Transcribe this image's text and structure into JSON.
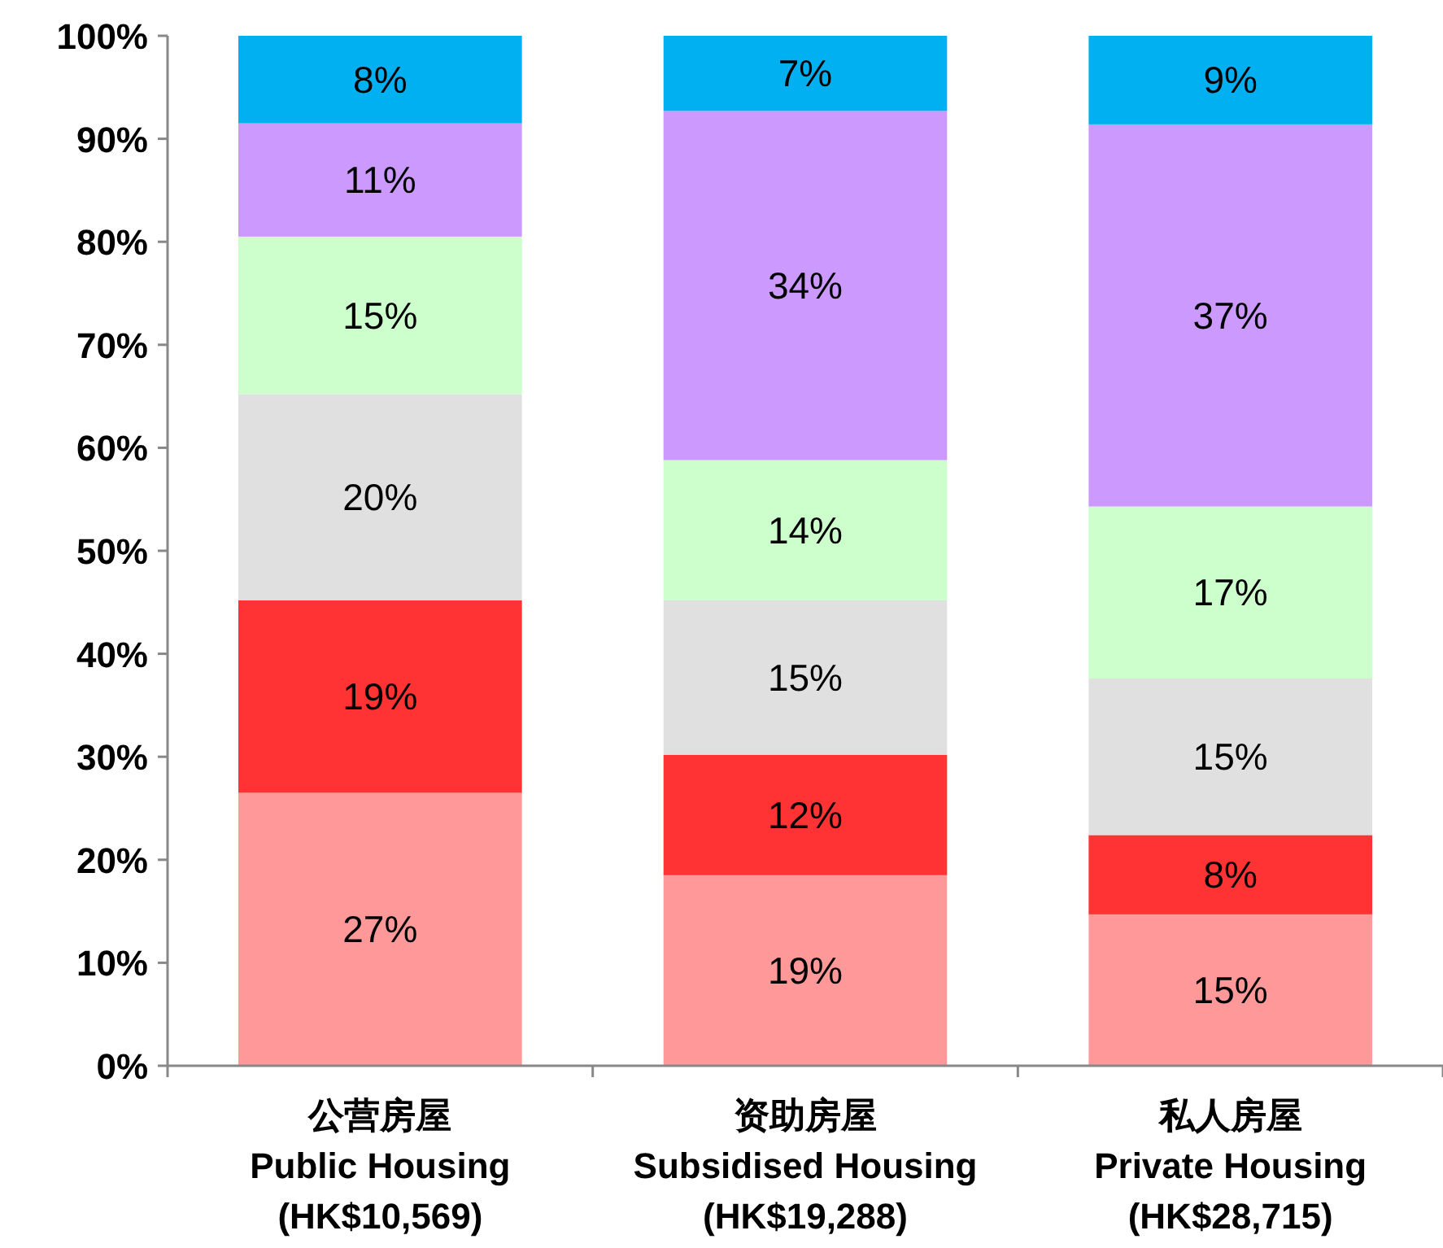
{
  "chart_data": {
    "type": "bar",
    "stacked": true,
    "categories": [
      "公营房屋\nPublic Housing\n(HK$10,569)",
      "资助房屋\nSubsidised Housing\n(HK$19,288)",
      "私人房屋\nPrivate Housing\n(HK$28,715)"
    ],
    "ylim": [
      0,
      100
    ],
    "yticks": [
      {
        "value": 0,
        "label": "0%"
      },
      {
        "value": 10,
        "label": "10%"
      },
      {
        "value": 20,
        "label": "20%"
      },
      {
        "value": 30,
        "label": "30%"
      },
      {
        "value": 40,
        "label": "40%"
      },
      {
        "value": 50,
        "label": "50%"
      },
      {
        "value": 60,
        "label": "60%"
      },
      {
        "value": 70,
        "label": "70%"
      },
      {
        "value": 80,
        "label": "80%"
      },
      {
        "value": 90,
        "label": "90%"
      },
      {
        "value": 100,
        "label": "100%"
      }
    ],
    "grid": false,
    "series": [
      {
        "color": "#ff9999",
        "values": [
          26.5,
          18.5,
          14.7
        ],
        "value_labels": [
          "27%",
          "19%",
          "15%"
        ]
      },
      {
        "color": "#ff3333",
        "values": [
          18.7,
          11.7,
          7.7
        ],
        "value_labels": [
          "19%",
          "12%",
          "8%"
        ]
      },
      {
        "color": "#e0e0e0",
        "values": [
          20.0,
          15.0,
          15.2
        ],
        "value_labels": [
          "20%",
          "15%",
          "15%"
        ]
      },
      {
        "color": "#ccffcc",
        "values": [
          15.3,
          13.6,
          16.7
        ],
        "value_labels": [
          "15%",
          "14%",
          "17%"
        ]
      },
      {
        "color": "#cc99ff",
        "values": [
          11.0,
          33.9,
          37.1
        ],
        "value_labels": [
          "11%",
          "34%",
          "37%"
        ]
      },
      {
        "color": "#00b0f0",
        "values": [
          8.5,
          7.3,
          8.6
        ],
        "value_labels": [
          "8%",
          "7%",
          "9%"
        ]
      }
    ]
  }
}
